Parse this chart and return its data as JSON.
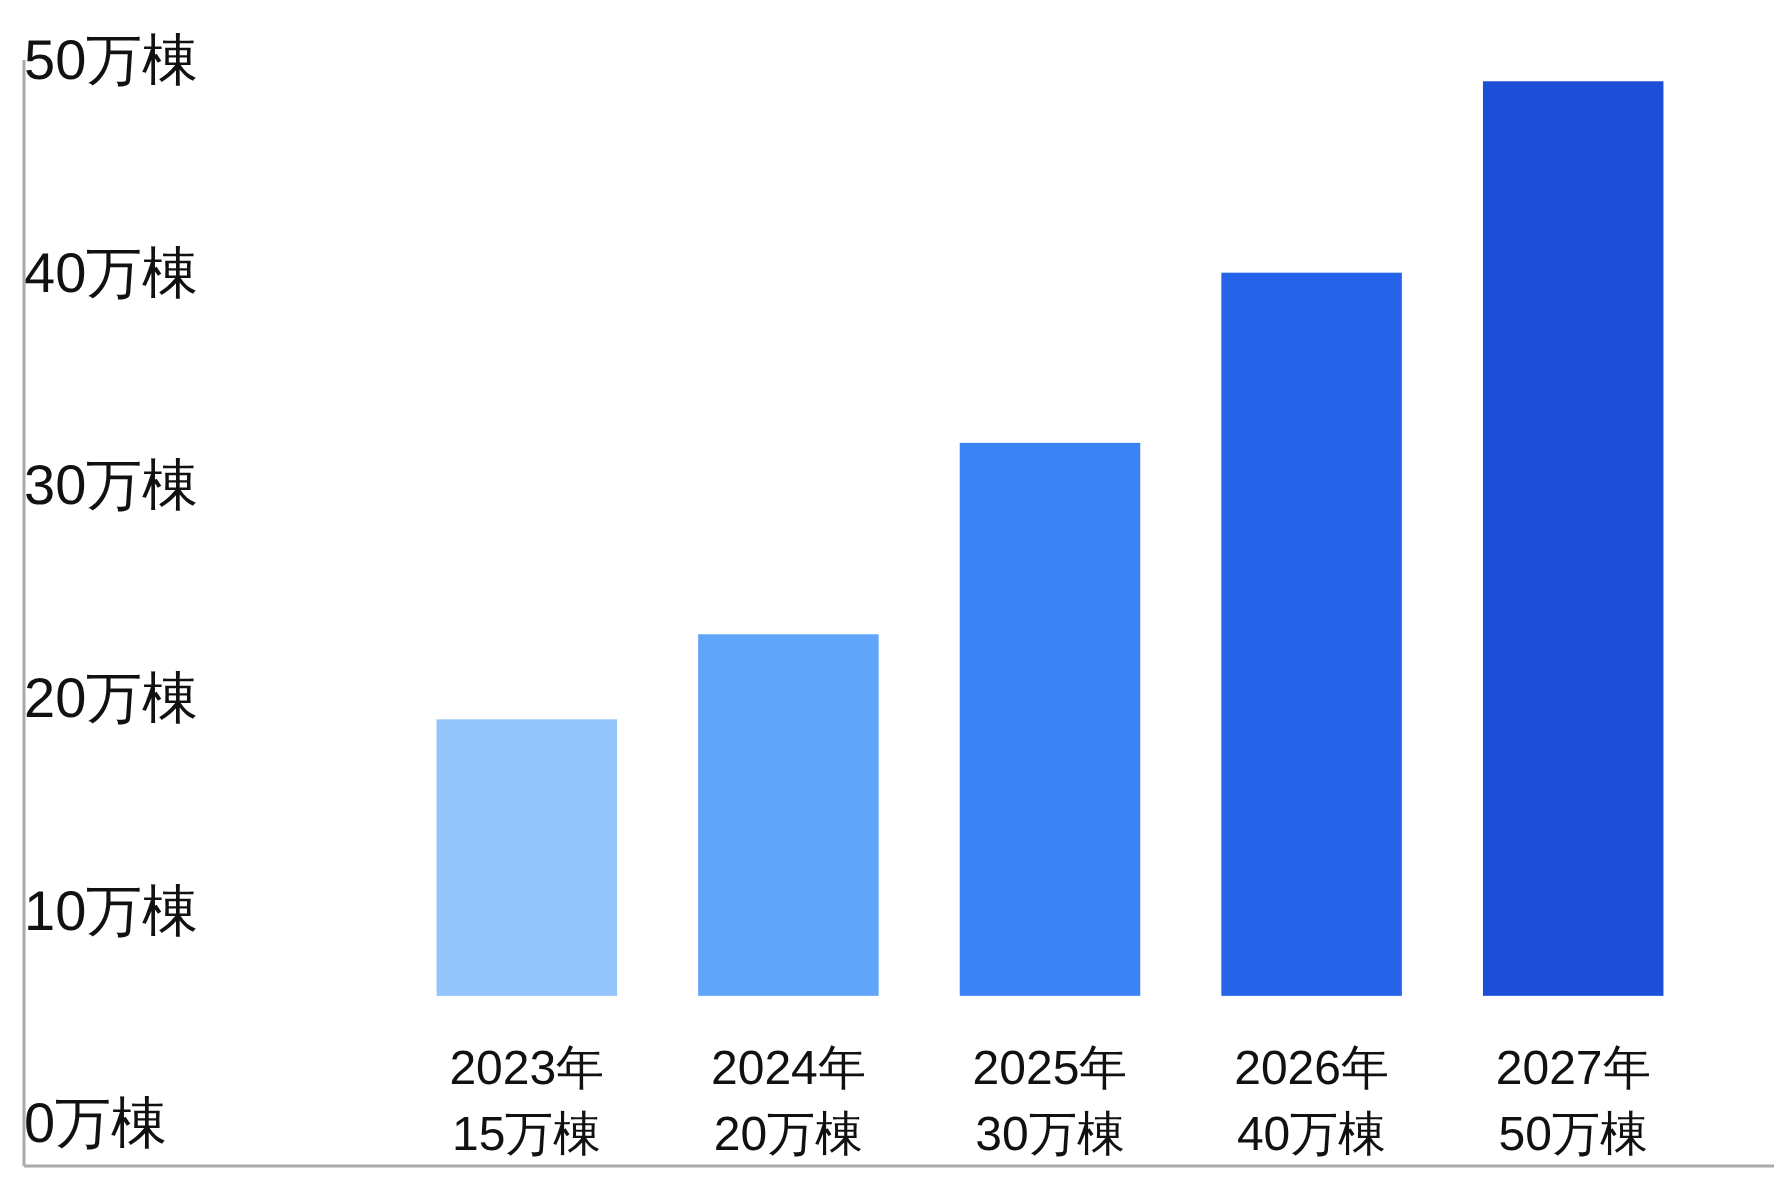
{
  "chart_data": {
    "type": "bar",
    "categories": [
      "2023年\n15万棟",
      "2024年\n20万棟",
      "2025年\n30万棟",
      "2026年\n40万棟",
      "2027年\n50万棟"
    ],
    "values": [
      13,
      17,
      26,
      34,
      43
    ],
    "base": [
      6,
      6,
      6,
      6,
      6
    ],
    "colors": [
      "#93c5fd",
      "#60a5fa",
      "#3b82f6",
      "#2563eb",
      "#1d4ed8"
    ],
    "ylim": [
      -2,
      50
    ],
    "yticks": [
      {
        "value": 0,
        "label": "0万棟"
      },
      {
        "value": 10,
        "label": "10万棟"
      },
      {
        "value": 20,
        "label": "20万棟"
      },
      {
        "value": 30,
        "label": "30万棟"
      },
      {
        "value": 40,
        "label": "40万棟"
      },
      {
        "value": 50,
        "label": "50万棟"
      }
    ],
    "grid": false
  }
}
